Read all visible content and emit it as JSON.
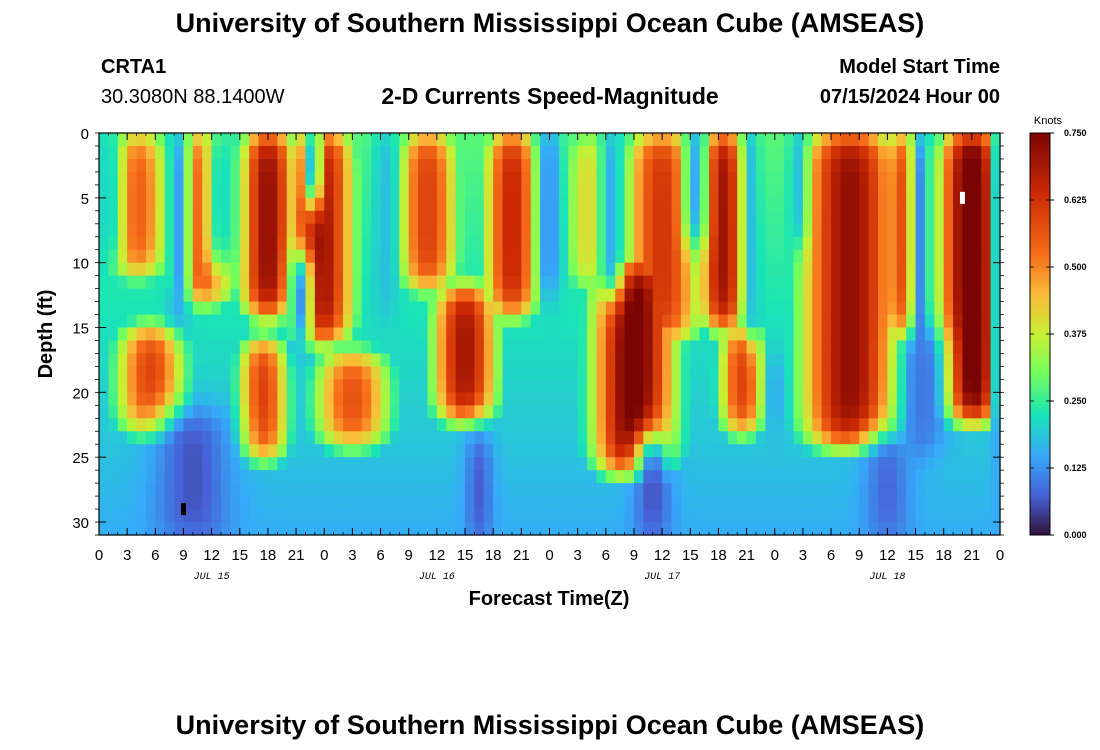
{
  "header": {
    "title": "University of Southern Mississippi Ocean Cube (AMSEAS)",
    "station": "CRTA1",
    "coords": "30.3080N  88.1400W",
    "chart_heading": "2-D Currents Speed-Magnitude",
    "model_start_label": "Model Start Time",
    "model_start_value": "07/15/2024 Hour 00",
    "footer_title": "University of Southern Mississippi Ocean Cube (AMSEAS)"
  },
  "colors": {
    "low": "#30123b",
    "mid": "#a2fc3c",
    "high": "#7a0403"
  },
  "chart_data": {
    "type": "heatmap",
    "title": "2-D Currents Speed-Magnitude",
    "xlabel": "Forecast Time(Z)",
    "ylabel": "Depth (ft)",
    "x_range_hours": [
      0,
      96
    ],
    "y_range_ft": [
      0,
      31
    ],
    "y_inverted": true,
    "x_tick_labels": [
      "0",
      "3",
      "6",
      "9",
      "12",
      "15",
      "18",
      "21",
      "0",
      "3",
      "6",
      "9",
      "12",
      "15",
      "18",
      "21",
      "0",
      "3",
      "6",
      "9",
      "12",
      "15",
      "18",
      "21",
      "0",
      "3",
      "6",
      "9",
      "12",
      "15",
      "18",
      "21",
      "0"
    ],
    "y_tick_labels": [
      "0",
      "5",
      "10",
      "15",
      "20",
      "25",
      "30"
    ],
    "day_labels": [
      {
        "text": "JUL 15",
        "hour": 12
      },
      {
        "text": "JUL 16",
        "hour": 36
      },
      {
        "text": "JUL 17",
        "hour": 60
      },
      {
        "text": "JUL 18",
        "hour": 84
      }
    ],
    "colorbar": {
      "unit": "Knots",
      "min": 0.0,
      "max": 0.75,
      "tick_labels": [
        "0.750",
        "0.625",
        "0.500",
        "0.375",
        "0.250",
        "0.125",
        "0.000"
      ]
    },
    "max_marker": {
      "hour": 92,
      "depth_ft": 5
    },
    "min_marker": {
      "hour": 9,
      "depth_ft": 29
    }
  }
}
